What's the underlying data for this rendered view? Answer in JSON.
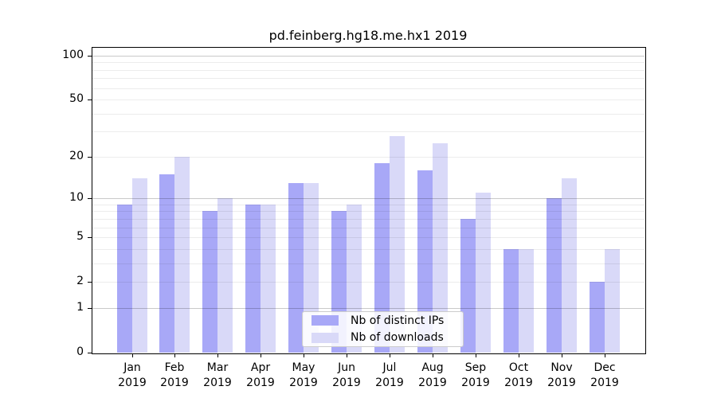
{
  "title": "pd.feinberg.hg18.me.hx1 2019",
  "axes": {
    "y_tick_labels": [
      "0",
      "1",
      "2",
      "5",
      "10",
      "20",
      "50",
      "100"
    ],
    "y_ticks": [
      0,
      1,
      2,
      5,
      10,
      20,
      50,
      100
    ],
    "y_major_gridlines": [
      1,
      10,
      100
    ],
    "y_minor_gridlines": [
      2,
      3,
      4,
      5,
      6,
      7,
      8,
      9,
      20,
      30,
      40,
      50,
      60,
      70,
      80,
      90
    ]
  },
  "colors": {
    "distinct_ips_bar": "#a8a8f7",
    "downloads_bar": "#d9d9f8",
    "major_grid": "rgba(0,0,0,0.21)",
    "minor_grid": "rgba(0,0,0,0.075)",
    "spine": "#000000"
  },
  "chart_data": {
    "type": "bar",
    "title": "pd.feinberg.hg18.me.hx1 2019",
    "categories": [
      "Jan 2019",
      "Feb 2019",
      "Mar 2019",
      "Apr 2019",
      "May 2019",
      "Jun 2019",
      "Jul 2019",
      "Aug 2019",
      "Sep 2019",
      "Oct 2019",
      "Nov 2019",
      "Dec 2019"
    ],
    "series": [
      {
        "name": "Nb of distinct IPs",
        "color": "#a8a8f7",
        "values": [
          9,
          15,
          8,
          9,
          13,
          8,
          18,
          16,
          7,
          4,
          10,
          2
        ]
      },
      {
        "name": "Nb of downloads",
        "color": "#d9d9f8",
        "values": [
          14,
          20,
          10,
          9,
          13,
          9,
          28,
          25,
          11,
          4,
          14,
          4
        ]
      }
    ],
    "xlabel": "",
    "ylabel": "",
    "yscale": "log10(value+1)",
    "ylim": [
      0,
      115
    ],
    "y_ticks": [
      0,
      1,
      2,
      5,
      10,
      20,
      50,
      100
    ],
    "grid": "horizontal, minor and major, drawn over bars",
    "legend_position": "lower center"
  }
}
